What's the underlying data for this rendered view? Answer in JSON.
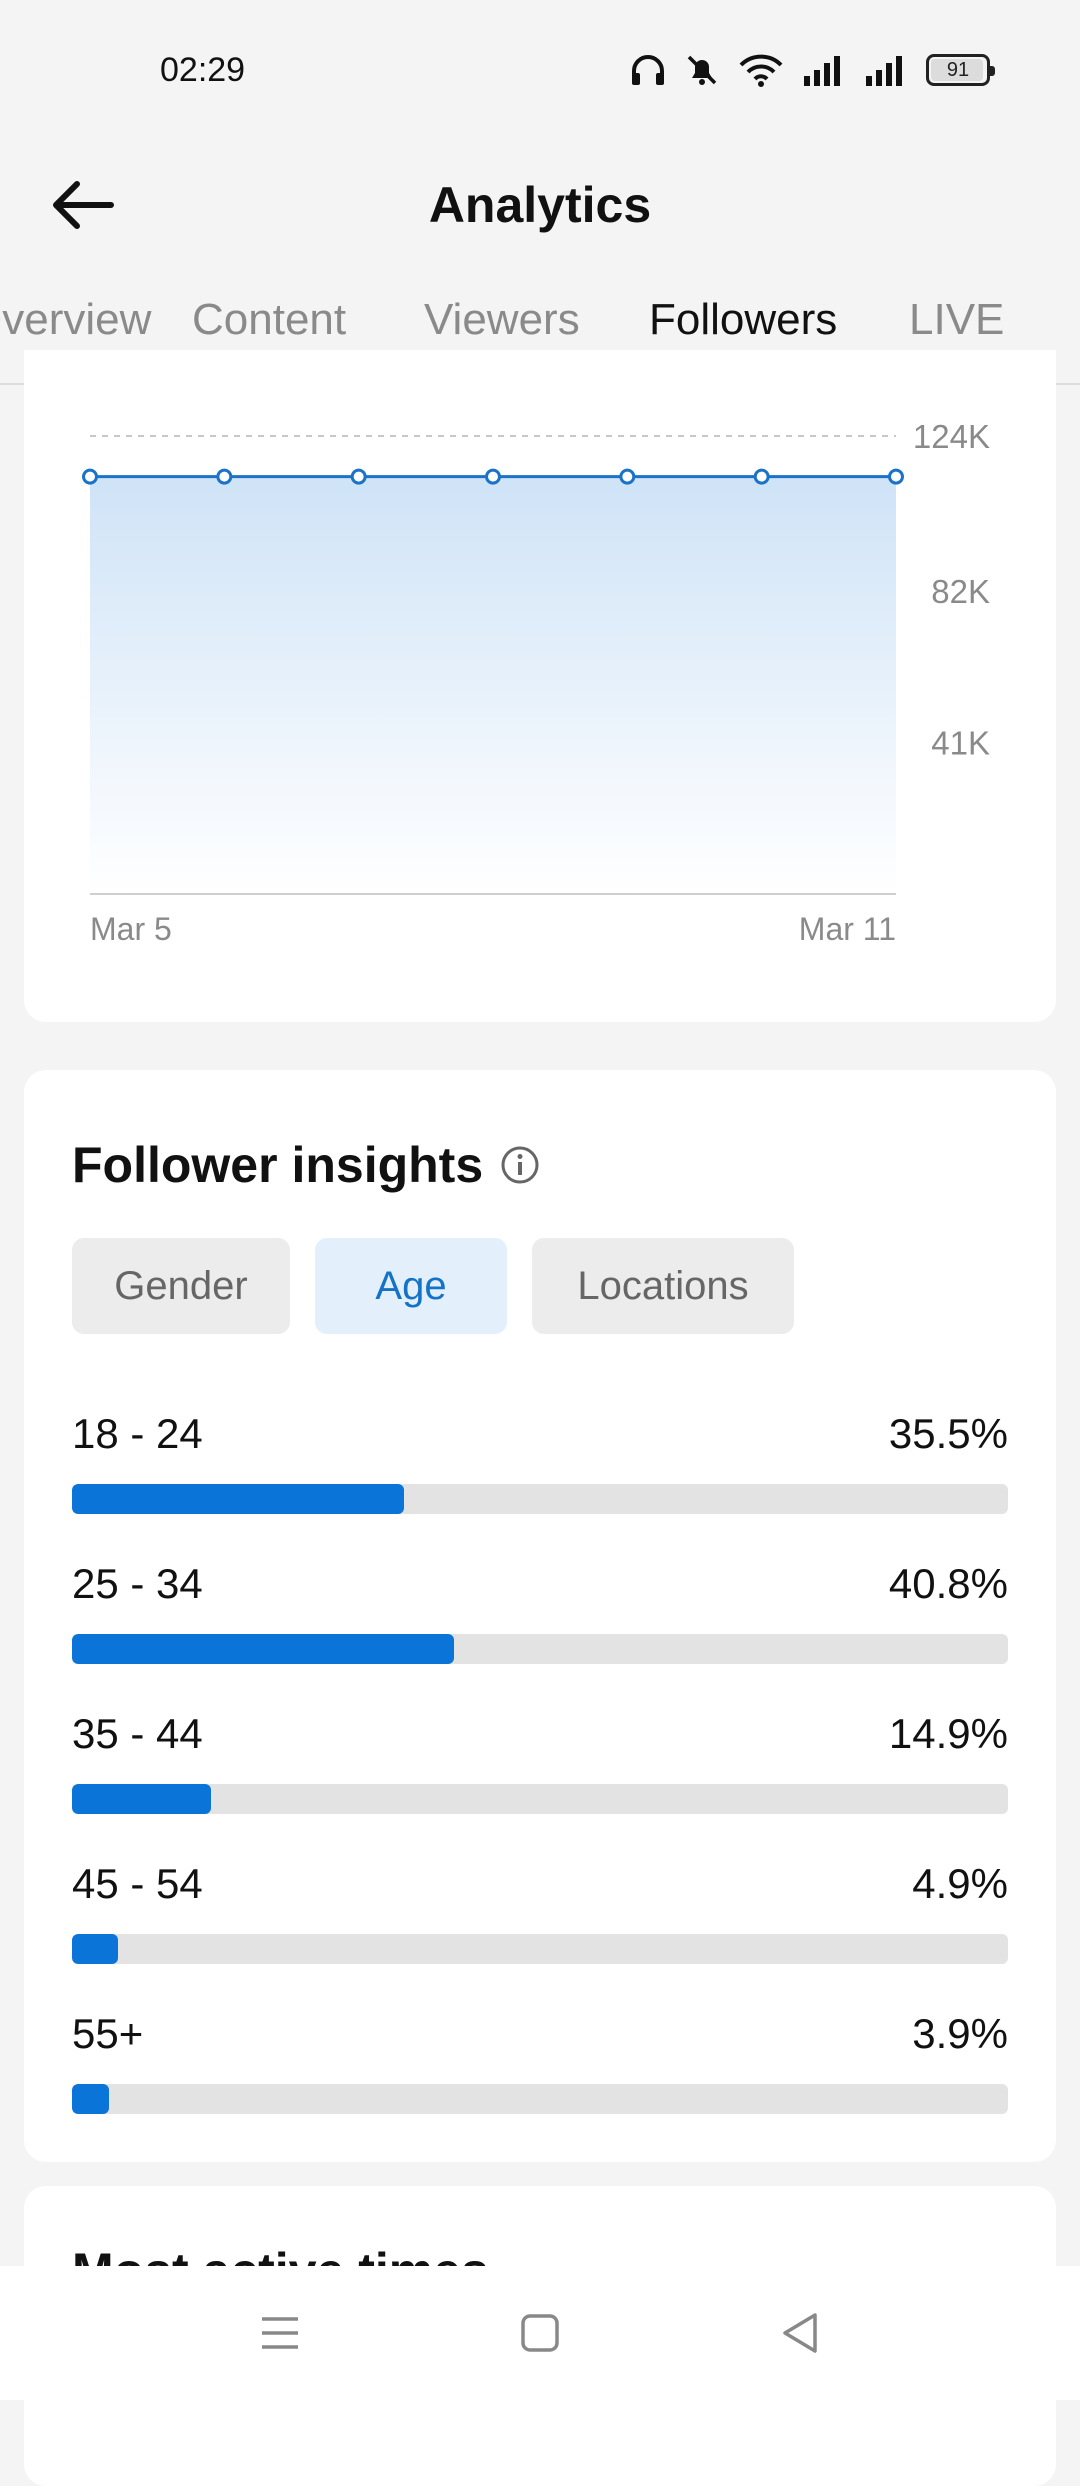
{
  "status_bar": {
    "time": "02:29",
    "battery": "91",
    "icons": [
      "headphones-icon",
      "bell-muted-icon",
      "wifi-icon",
      "signal-icon",
      "signal-icon",
      "battery-icon"
    ]
  },
  "header": {
    "title": "Analytics"
  },
  "tabs": [
    {
      "label": "Overview",
      "active": false
    },
    {
      "label": "Content",
      "active": false
    },
    {
      "label": "Viewers",
      "active": false
    },
    {
      "label": "Followers",
      "active": true
    },
    {
      "label": "LIVE",
      "active": false
    }
  ],
  "chart_data": {
    "type": "area",
    "x": [
      "Mar 5",
      "Mar 6",
      "Mar 7",
      "Mar 8",
      "Mar 9",
      "Mar 10",
      "Mar 11"
    ],
    "series": [
      {
        "values": [
          113000,
          113000,
          113000,
          113000,
          113000,
          113000,
          113000
        ]
      }
    ],
    "y_ticks": [
      "124K",
      "82K",
      "41K"
    ],
    "y_tick_values": [
      124000,
      82000,
      41000
    ],
    "x_tick_labels": [
      "Mar 5",
      "Mar 11"
    ],
    "ylim": [
      0,
      124000
    ],
    "grid": true,
    "colors": {
      "line": "#1a73c7",
      "fill_top": "#cfe3f7",
      "fill_bottom": "#ffffff"
    }
  },
  "insights": {
    "title": "Follower insights",
    "chips": [
      {
        "label": "Gender",
        "selected": false
      },
      {
        "label": "Age",
        "selected": true
      },
      {
        "label": "Locations",
        "selected": false
      }
    ],
    "age_groups": [
      {
        "label": "18 - 24",
        "value_text": "35.5%",
        "value": 35.5
      },
      {
        "label": "25 - 34",
        "value_text": "40.8%",
        "value": 40.8
      },
      {
        "label": "35 - 44",
        "value_text": "14.9%",
        "value": 14.9
      },
      {
        "label": "45 - 54",
        "value_text": "4.9%",
        "value": 4.9
      },
      {
        "label": "55+",
        "value_text": "3.9%",
        "value": 3.9
      }
    ],
    "bar_color": "#0b74d9"
  },
  "next_section": {
    "title": "Most active times"
  },
  "nav": {
    "icons": [
      "menu-icon",
      "home-square-icon",
      "back-triangle-icon"
    ]
  }
}
